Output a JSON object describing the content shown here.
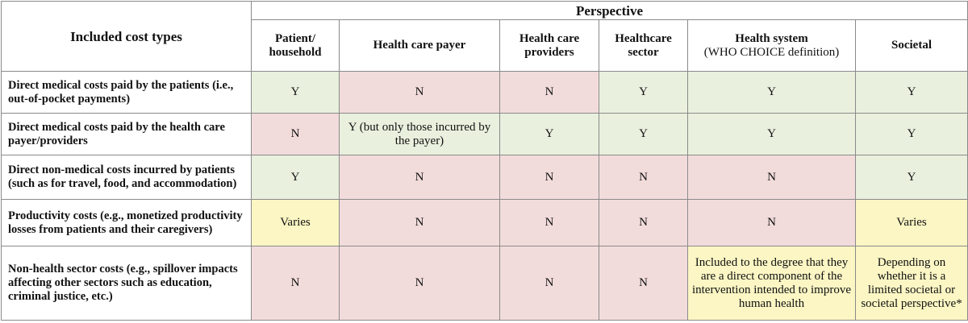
{
  "header": {
    "included_cost_types": "Included cost types",
    "perspective": "Perspective",
    "columns": [
      {
        "label": "Patient/ household"
      },
      {
        "label": "Health care payer"
      },
      {
        "label": "Health care providers"
      },
      {
        "label": "Healthcare sector"
      },
      {
        "label_bold": "Health system",
        "label_sub": "(WHO CHOICE definition)"
      },
      {
        "label": "Societal"
      }
    ]
  },
  "rows": [
    {
      "label": "Direct medical costs paid by the patients (i.e., out-of-pocket payments)",
      "cells": [
        {
          "text": "Y",
          "color": "#e9f0de"
        },
        {
          "text": "N",
          "color": "#f2dcdb"
        },
        {
          "text": "N",
          "color": "#f2dcdb"
        },
        {
          "text": "Y",
          "color": "#e9f0de"
        },
        {
          "text": "Y",
          "color": "#e9f0de"
        },
        {
          "text": "Y",
          "color": "#e9f0de"
        }
      ]
    },
    {
      "label": "Direct medical costs paid by the health care payer/providers",
      "cells": [
        {
          "text": "N",
          "color": "#f2dcdb"
        },
        {
          "text": "Y (but only those incurred by the payer)",
          "color": "#e9f0de"
        },
        {
          "text": "Y",
          "color": "#e9f0de"
        },
        {
          "text": "Y",
          "color": "#e9f0de"
        },
        {
          "text": "Y",
          "color": "#e9f0de"
        },
        {
          "text": "Y",
          "color": "#e9f0de"
        }
      ]
    },
    {
      "label": "Direct non-medical costs incurred by patients (such as for travel, food, and accommodation)",
      "cells": [
        {
          "text": "Y",
          "color": "#e9f0de"
        },
        {
          "text": "N",
          "color": "#f2dcdb"
        },
        {
          "text": "N",
          "color": "#f2dcdb"
        },
        {
          "text": "N",
          "color": "#f2dcdb"
        },
        {
          "text": "N",
          "color": "#f2dcdb"
        },
        {
          "text": "Y",
          "color": "#e9f0de"
        }
      ]
    },
    {
      "label": "Productivity costs (e.g., monetized productivity losses from patients and their caregivers)",
      "cells": [
        {
          "text": "Varies",
          "color": "#fbf6c4"
        },
        {
          "text": "N",
          "color": "#f2dcdb"
        },
        {
          "text": "N",
          "color": "#f2dcdb"
        },
        {
          "text": "N",
          "color": "#f2dcdb"
        },
        {
          "text": "N",
          "color": "#f2dcdb"
        },
        {
          "text": "Varies",
          "color": "#fbf6c4"
        }
      ]
    },
    {
      "label": "Non-health sector costs (e.g., spillover impacts affecting other sectors such as education, criminal justice, etc.)",
      "cells": [
        {
          "text": "N",
          "color": "#f2dcdb"
        },
        {
          "text": "N",
          "color": "#f2dcdb"
        },
        {
          "text": "N",
          "color": "#f2dcdb"
        },
        {
          "text": "N",
          "color": "#f2dcdb"
        },
        {
          "text": "Included to the degree that they are a direct component of the intervention intended to improve human health",
          "color": "#fbf6c4"
        },
        {
          "text": "Depending on whether it is a limited societal or societal perspective*",
          "color": "#fbf6c4"
        }
      ]
    }
  ]
}
